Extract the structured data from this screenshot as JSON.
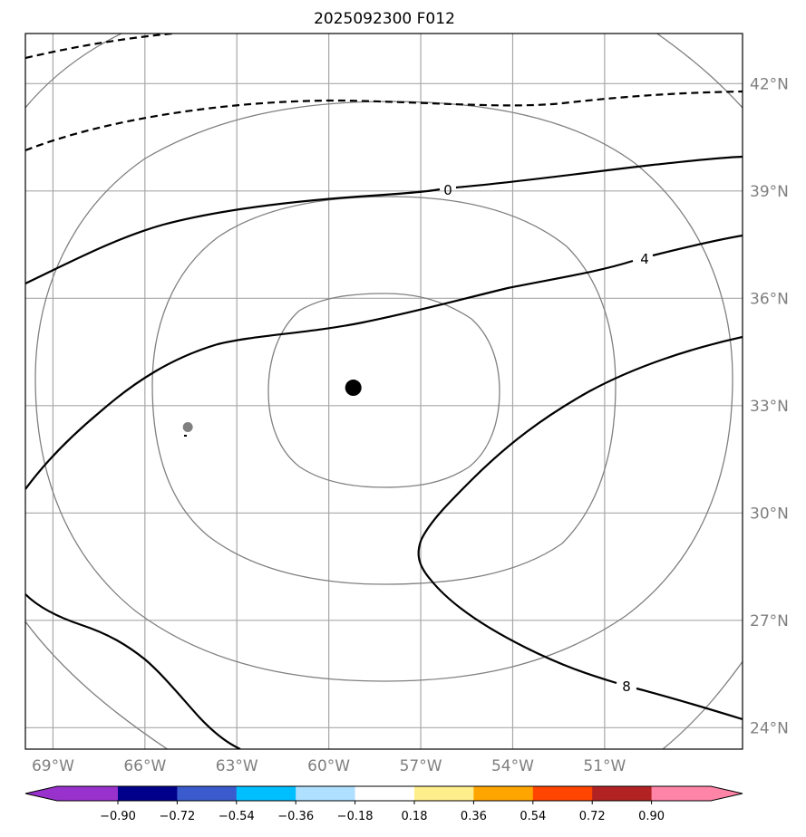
{
  "title": "2025092300 F012",
  "map": {
    "lon_range": [
      -69.9,
      -46.5
    ],
    "lat_range": [
      23.4,
      43.4
    ],
    "lon_ticks": [
      {
        "value": -69,
        "label": "69°W"
      },
      {
        "value": -66,
        "label": "66°W"
      },
      {
        "value": -63,
        "label": "63°W"
      },
      {
        "value": -60,
        "label": "60°W"
      },
      {
        "value": -57,
        "label": "57°W"
      },
      {
        "value": -54,
        "label": "54°W"
      },
      {
        "value": -51,
        "label": "51°W"
      }
    ],
    "lat_ticks": [
      {
        "value": 24,
        "label": "24°N"
      },
      {
        "value": 27,
        "label": "27°N"
      },
      {
        "value": 30,
        "label": "30°N"
      },
      {
        "value": 33,
        "label": "33°N"
      },
      {
        "value": 36,
        "label": "36°N"
      },
      {
        "value": 39,
        "label": "39°N"
      },
      {
        "value": 42,
        "label": "42°N"
      }
    ],
    "gridlines": true,
    "storm_center": {
      "lon": -59.2,
      "lat": 33.5,
      "color": "#000000"
    },
    "secondary_point": {
      "lon": -64.6,
      "lat": 32.4,
      "color": "#808080"
    },
    "range_rings_color": "#808080",
    "contour_color": "#000000",
    "contour_labels": [
      {
        "text": "0",
        "lon": -57.5,
        "lat": 39.2
      },
      {
        "text": "4",
        "lon": -51.1,
        "lat": 37.3
      },
      {
        "text": "8",
        "lon": -52.0,
        "lat": 24.8
      }
    ]
  },
  "colorbar": {
    "colors": [
      "#9932CC",
      "#00008B",
      "#3A5BCD",
      "#00BFFF",
      "#B0E0FF",
      "#FFFFFF",
      "#FFEE8C",
      "#FFA500",
      "#FF4500",
      "#B22222",
      "#FF85A8"
    ],
    "tick_labels": [
      "−0.90",
      "−0.72",
      "−0.54",
      "−0.36",
      "−0.18",
      "0.18",
      "0.36",
      "0.54",
      "0.72",
      "0.90"
    ]
  }
}
